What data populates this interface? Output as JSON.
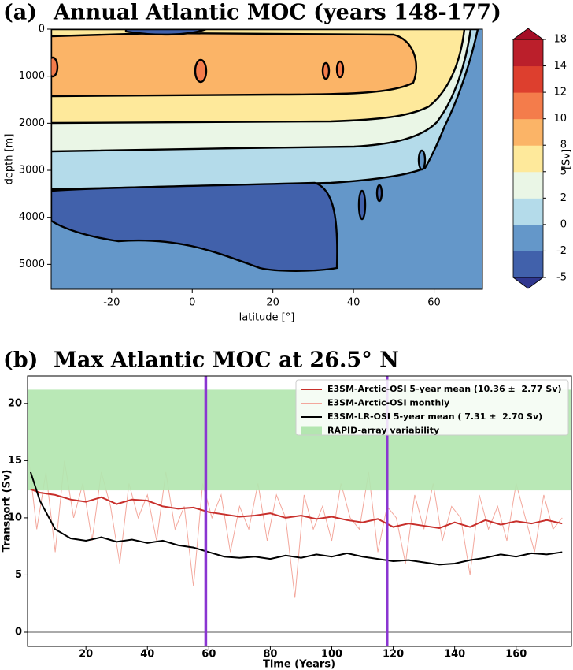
{
  "chart_data": [
    {
      "type": "contour",
      "panel_label": "(a)",
      "title": "Annual Atlantic MOC (years 148-177)",
      "xlabel": "latitude [°]",
      "ylabel": "depth [m]",
      "xlim": [
        -35,
        72
      ],
      "xticks": [
        -20,
        0,
        20,
        40,
        60
      ],
      "ylim": [
        0,
        5530
      ],
      "yticks": [
        0,
        1000,
        2000,
        3000,
        4000,
        5000
      ],
      "levels": [
        -5,
        -2,
        0,
        2,
        5,
        8,
        10,
        12,
        14,
        18
      ],
      "colors": [
        "#4161ab",
        "#6497c9",
        "#b4dbea",
        "#eaf6e6",
        "#fee99b",
        "#fbb467",
        "#f47c4b",
        "#dd3f2e",
        "#bb1f2b"
      ],
      "under_color": "#30378f",
      "over_color": "#a50e26",
      "colorbar_label": "[Sv]"
    },
    {
      "type": "timeseries",
      "panel_label": "(b)",
      "title": "Max Atlantic MOC at 26.5° N",
      "xlabel": "Time (Years)",
      "ylabel": "Transport (Sv)",
      "xlim": [
        1,
        178
      ],
      "xticks": [
        20,
        40,
        60,
        80,
        100,
        120,
        140,
        160
      ],
      "ylim": [
        -1.24,
        22.4
      ],
      "yticks": [
        0,
        5,
        10,
        15,
        20
      ],
      "band": {
        "name": "RAPID-array variability",
        "color": "#b3e6b0",
        "range": [
          12.4,
          21.2
        ]
      },
      "vlines": {
        "color": "#8a35d1",
        "values": [
          59,
          118
        ]
      },
      "hline": 0,
      "series": [
        {
          "name": "E3SM-Arctic-OSI 5-year mean (10.36 ±  2.77 Sv)",
          "color": "#c8302c",
          "width": 2,
          "x": [
            2,
            5,
            10,
            15,
            20,
            25,
            30,
            35,
            40,
            45,
            50,
            55,
            60,
            65,
            70,
            75,
            80,
            85,
            90,
            95,
            100,
            105,
            110,
            115,
            120,
            125,
            130,
            135,
            140,
            145,
            150,
            155,
            160,
            165,
            170,
            175
          ],
          "values": [
            12.5,
            12.2,
            12.0,
            11.6,
            11.4,
            11.8,
            11.2,
            11.6,
            11.5,
            11.0,
            10.8,
            10.9,
            10.5,
            10.3,
            10.1,
            10.2,
            10.4,
            10.0,
            10.2,
            9.9,
            10.1,
            9.8,
            9.6,
            9.9,
            9.2,
            9.5,
            9.3,
            9.1,
            9.6,
            9.2,
            9.8,
            9.4,
            9.7,
            9.5,
            9.8,
            9.5
          ]
        },
        {
          "name": "E3SM-Arctic-OSI monthly",
          "color": "#f3a79c",
          "width": 1,
          "x": [
            1,
            4,
            7,
            10,
            13,
            16,
            19,
            22,
            25,
            28,
            31,
            34,
            37,
            40,
            43,
            46,
            49,
            52,
            55,
            58,
            61,
            64,
            67,
            70,
            73,
            76,
            79,
            82,
            85,
            88,
            91,
            94,
            97,
            100,
            103,
            106,
            109,
            112,
            115,
            118,
            121,
            124,
            127,
            130,
            133,
            136,
            139,
            142,
            145,
            148,
            151,
            154,
            157,
            160,
            163,
            166,
            169,
            172,
            175
          ],
          "values": [
            16,
            9,
            14,
            7,
            15,
            10,
            13,
            8,
            14,
            11,
            6,
            13,
            10,
            12,
            8,
            14,
            9,
            11,
            4,
            13,
            10,
            12,
            7,
            11,
            9,
            13,
            8,
            12,
            10,
            3,
            12,
            9,
            11,
            8,
            13,
            10,
            9,
            14,
            7,
            11,
            10,
            6,
            12,
            9,
            13,
            8,
            11,
            10,
            5,
            12,
            9,
            11,
            8,
            13,
            10,
            7,
            12,
            9,
            10
          ]
        },
        {
          "name": "E3SM-LR-OSI 5-year mean ( 7.31 ±  2.70 Sv)",
          "color": "#000000",
          "width": 2,
          "x": [
            2,
            5,
            10,
            15,
            20,
            25,
            30,
            35,
            40,
            45,
            50,
            55,
            60,
            65,
            70,
            75,
            80,
            85,
            90,
            95,
            100,
            105,
            110,
            115,
            120,
            125,
            130,
            135,
            140,
            145,
            150,
            155,
            160,
            165,
            170,
            175
          ],
          "values": [
            14.0,
            11.5,
            9.0,
            8.2,
            8.0,
            8.3,
            7.9,
            8.1,
            7.8,
            8.0,
            7.6,
            7.4,
            7.0,
            6.6,
            6.5,
            6.6,
            6.4,
            6.7,
            6.5,
            6.8,
            6.6,
            6.9,
            6.6,
            6.4,
            6.2,
            6.3,
            6.1,
            5.9,
            6.0,
            6.3,
            6.5,
            6.8,
            6.6,
            6.9,
            6.8,
            7.0
          ]
        }
      ]
    }
  ]
}
